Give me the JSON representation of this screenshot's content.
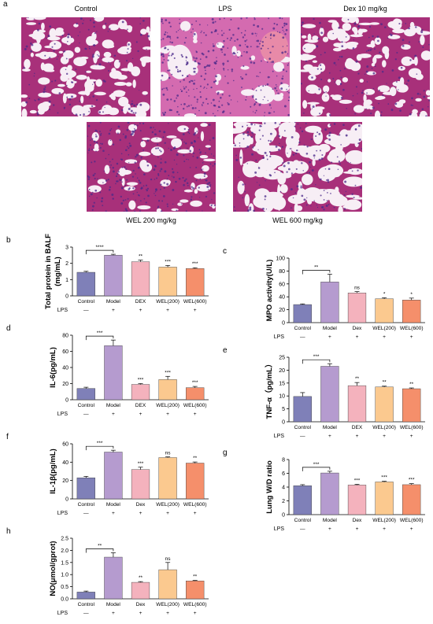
{
  "panel_a": {
    "letter": "a",
    "images": [
      {
        "title": "Control",
        "tissue": "normal"
      },
      {
        "title": "LPS",
        "tissue": "injured"
      },
      {
        "title": "Dex 10 mg/kg",
        "tissue": "normal"
      },
      {
        "title": "WEL 200 mg/kg",
        "tissue": "moderate"
      },
      {
        "title": "WEL 600 mg/kg",
        "tissue": "mild"
      }
    ],
    "colors": {
      "tissue": "#a8307a",
      "tissue_light": "#d46bb0",
      "background": "#f7eef5",
      "nuclei": "#4b2a8a"
    }
  },
  "colors": {
    "bars": [
      "#7f80b8",
      "#b59bcf",
      "#f4b2bd",
      "#fbc98f",
      "#f58f6b"
    ],
    "axis": "#000000"
  },
  "chart_data": [
    {
      "id": "b",
      "letter": "b",
      "type": "bar",
      "ylabel": "Total protein in BALF (mg/mL)",
      "ylabel_lines": [
        "Total protein in BALF",
        "(mg/mL)"
      ],
      "categories": [
        "Control",
        "Model",
        "DEX",
        "WEL(200)",
        "WEL(600)"
      ],
      "values": [
        1.45,
        2.5,
        2.1,
        1.77,
        1.68
      ],
      "errors": [
        0.06,
        0.06,
        0.1,
        0.1,
        0.05
      ],
      "ylim": [
        0,
        3
      ],
      "yticks": [
        "0",
        "1",
        "2",
        "3"
      ],
      "ytick_values": [
        0,
        1,
        2,
        3
      ],
      "sig": [
        "",
        "",
        "**",
        "***",
        "***"
      ],
      "bracket_label": "****",
      "lps_label": "LPS",
      "lps": [
        "—",
        "+",
        "+",
        "+",
        "+"
      ]
    },
    {
      "id": "c",
      "letter": "c",
      "type": "bar",
      "ylabel": "MPO activity(U/L)",
      "ylabel_lines": [
        "MPO activity(U/L)"
      ],
      "categories": [
        "Control",
        "Model",
        "Dex",
        "WEL(200)",
        "WEL(600)"
      ],
      "values": [
        28,
        63,
        46,
        37,
        35
      ],
      "errors": [
        1,
        12,
        2,
        1.5,
        3
      ],
      "ylim": [
        0,
        100
      ],
      "yticks": [
        "0",
        "20",
        "40",
        "60",
        "80",
        "100"
      ],
      "ytick_values": [
        0,
        20,
        40,
        60,
        80,
        100
      ],
      "sig": [
        "",
        "",
        "ns",
        "*",
        "*"
      ],
      "bracket_label": "**",
      "lps_label": "LPS",
      "lps": [
        "—",
        "+",
        "+",
        "+",
        "+"
      ]
    },
    {
      "id": "d",
      "letter": "d",
      "type": "bar",
      "ylabel": "IL-6(pg/mL)",
      "ylabel_lines": [
        "IL-6(pg/mL)"
      ],
      "categories": [
        "Control",
        "Model",
        "DEX",
        "WEL(200)",
        "WEL(600)"
      ],
      "values": [
        14,
        67,
        19,
        25,
        15
      ],
      "errors": [
        1.5,
        7,
        1,
        4,
        1.5
      ],
      "ylim": [
        0,
        80
      ],
      "yticks": [
        "0",
        "20",
        "40",
        "60",
        "80"
      ],
      "ytick_values": [
        0,
        20,
        40,
        60,
        80
      ],
      "sig": [
        "",
        "",
        "***",
        "***",
        "***"
      ],
      "bracket_label": "***",
      "lps_label": "LPS",
      "lps": [
        "—",
        "+",
        "+",
        "+",
        "+"
      ]
    },
    {
      "id": "e",
      "letter": "e",
      "type": "bar",
      "ylabel": "TNF-α（pg/mL）",
      "ylabel_lines": [
        "TNF-α（pg/mL）"
      ],
      "categories": [
        "Control",
        "Model",
        "DEX",
        "WEL(200)",
        "WEL(600)"
      ],
      "values": [
        9.8,
        21.5,
        14,
        13.5,
        12.8
      ],
      "errors": [
        1.5,
        1,
        1.2,
        0.3,
        0.3
      ],
      "ylim": [
        0,
        25
      ],
      "yticks": [
        "0",
        "5",
        "10",
        "15",
        "20",
        "25"
      ],
      "ytick_values": [
        0,
        5,
        10,
        15,
        20,
        25
      ],
      "sig": [
        "",
        "",
        "**",
        "**",
        "**"
      ],
      "bracket_label": "***",
      "lps_label": "LPS",
      "lps": [
        "—",
        "+",
        "+",
        "+",
        "+"
      ]
    },
    {
      "id": "f",
      "letter": "f",
      "type": "bar",
      "ylabel": "IL-1β(pg/mL)",
      "ylabel_lines": [
        "IL-1β(pg/mL)"
      ],
      "categories": [
        "Control",
        "Model",
        "Dex",
        "WEL(200)",
        "WEL(600)"
      ],
      "values": [
        23,
        51,
        32,
        45,
        39
      ],
      "errors": [
        1.5,
        2,
        2.5,
        0.8,
        1.2
      ],
      "ylim": [
        0,
        60
      ],
      "yticks": [
        "0",
        "20",
        "40",
        "60"
      ],
      "ytick_values": [
        0,
        20,
        40,
        60
      ],
      "sig": [
        "",
        "",
        "***",
        "ns",
        "**"
      ],
      "bracket_label": "***",
      "lps_label": "LPS",
      "lps": [
        "—",
        "+",
        "+",
        "+",
        "+"
      ]
    },
    {
      "id": "g",
      "letter": "g",
      "type": "bar",
      "ylabel": "Lung W/D ratio",
      "ylabel_lines": [
        "Lung W/D ratio"
      ],
      "categories": [
        "Control",
        "Model",
        "Dex",
        "WEL(200)",
        "WEL(600)"
      ],
      "values": [
        4.2,
        6.05,
        4.3,
        4.75,
        4.35
      ],
      "errors": [
        0.15,
        0.25,
        0.1,
        0.1,
        0.15
      ],
      "ylim": [
        0,
        8
      ],
      "yticks": [
        "0",
        "2",
        "4",
        "6",
        "8"
      ],
      "ytick_values": [
        0,
        2,
        4,
        6,
        8
      ],
      "sig": [
        "",
        "",
        "***",
        "***",
        "***"
      ],
      "bracket_label": "***",
      "lps_label": "LPS",
      "lps": [
        "—",
        "+",
        "+",
        "+",
        "+"
      ]
    },
    {
      "id": "h",
      "letter": "h",
      "type": "bar",
      "ylabel": "NO(μmol/gprot)",
      "ylabel_lines": [
        "NO(μmol/gprot)"
      ],
      "categories": [
        "Control",
        "Model",
        "Dex",
        "WEL(200)",
        "WEL(600)"
      ],
      "values": [
        0.28,
        1.72,
        0.68,
        1.2,
        0.74
      ],
      "errors": [
        0.04,
        0.18,
        0.03,
        0.3,
        0.02
      ],
      "ylim": [
        0,
        2.5
      ],
      "yticks": [
        "0.0",
        "0.5",
        "1.0",
        "1.5",
        "2.0",
        "2.5"
      ],
      "ytick_values": [
        0,
        0.5,
        1,
        1.5,
        2,
        2.5
      ],
      "sig": [
        "",
        "",
        "**",
        "ns",
        "**"
      ],
      "bracket_label": "**",
      "lps_label": "LPS",
      "lps": [
        "—",
        "+",
        "+",
        "+",
        "+"
      ]
    }
  ]
}
